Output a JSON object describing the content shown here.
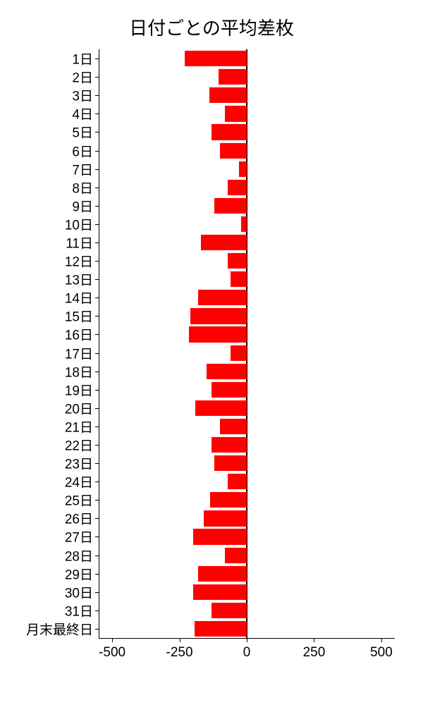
{
  "chart": {
    "type": "bar",
    "orientation": "horizontal",
    "title": "日付ごとの平均差枚",
    "title_fontsize": 26,
    "background_color": "#ffffff",
    "bar_color": "#ff0000",
    "axis_color": "#000000",
    "text_color": "#000000",
    "label_fontsize": 19,
    "xlim": [
      -550,
      550
    ],
    "x_ticks": [
      -500,
      -250,
      0,
      250,
      500
    ],
    "x_tick_labels": [
      "-500",
      "-250",
      "0",
      "250",
      "500"
    ],
    "categories": [
      "1日",
      "2日",
      "3日",
      "4日",
      "5日",
      "6日",
      "7日",
      "8日",
      "9日",
      "10日",
      "11日",
      "12日",
      "13日",
      "14日",
      "15日",
      "16日",
      "17日",
      "18日",
      "19日",
      "20日",
      "21日",
      "22日",
      "23日",
      "24日",
      "25日",
      "26日",
      "27日",
      "28日",
      "29日",
      "30日",
      "31日",
      "月末最終日"
    ],
    "values": [
      -230,
      -105,
      -140,
      -80,
      -130,
      -100,
      -30,
      -70,
      -120,
      -20,
      -170,
      -70,
      -60,
      -180,
      -210,
      -215,
      -60,
      -150,
      -130,
      -190,
      -100,
      -130,
      -120,
      -70,
      -135,
      -160,
      -200,
      -80,
      -180,
      -200,
      -130,
      -195
    ],
    "bar_height_ratio": 0.85
  }
}
